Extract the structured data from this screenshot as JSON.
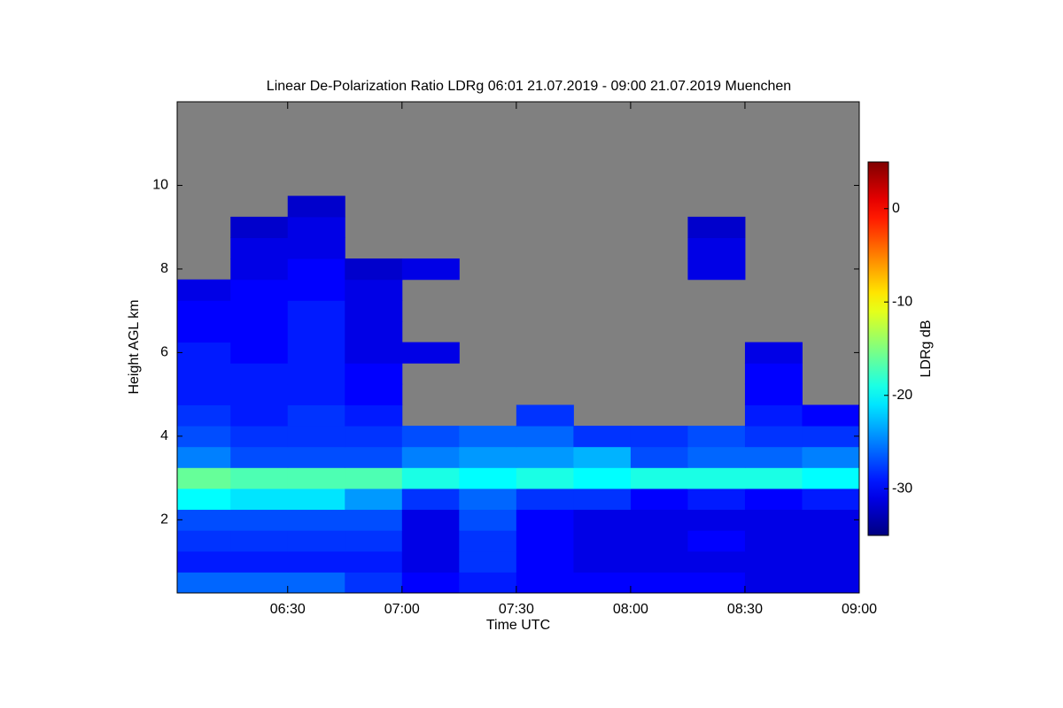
{
  "chart_data": {
    "type": "heatmap",
    "title": "Linear De-Polarization Ratio LDRg   06:01 21.07.2019 - 09:00 21.07.2019 Muenchen",
    "xlabel": "Time UTC",
    "ylabel": "Height AGL km",
    "colorbar_label": "LDRg dB",
    "xlim": [
      361,
      540
    ],
    "xticks": [
      {
        "value": 390,
        "label": "06:30"
      },
      {
        "value": 420,
        "label": "07:00"
      },
      {
        "value": 450,
        "label": "07:30"
      },
      {
        "value": 480,
        "label": "08:00"
      },
      {
        "value": 510,
        "label": "08:30"
      },
      {
        "value": 540,
        "label": "09:00"
      }
    ],
    "ylim": [
      0.25,
      12
    ],
    "yticks": [
      2,
      4,
      6,
      8,
      10
    ],
    "clim": [
      -35,
      5
    ],
    "cticks": [
      0,
      -10,
      -20,
      -30
    ],
    "colormap": "jet",
    "background": "#808080",
    "x_bins": [
      361,
      375,
      390,
      405,
      420,
      435,
      450,
      465,
      480,
      495,
      510,
      525,
      540
    ],
    "y_bins": [
      0.25,
      0.75,
      1.25,
      1.75,
      2.25,
      2.75,
      3.25,
      3.75,
      4.25,
      4.75,
      5.25,
      5.75,
      6.25,
      6.75,
      7.25,
      7.75,
      8.25,
      8.75,
      9.25,
      9.75
    ],
    "z": [
      [
        -26,
        -26,
        -26,
        -28,
        -30,
        -29,
        -30,
        -30,
        -30,
        -30,
        -31,
        -31
      ],
      [
        -29,
        -29,
        -29,
        -29,
        -31,
        -28,
        -30,
        -31,
        -31,
        -31,
        -31,
        -31
      ],
      [
        -28,
        -28,
        -28,
        -28,
        -31,
        -28,
        -30,
        -31,
        -31,
        -30,
        -31,
        -31
      ],
      [
        -27,
        -27,
        -27,
        -27,
        -31,
        -27,
        -30,
        -31,
        -31,
        -31,
        -31,
        -31
      ],
      [
        -20,
        -21,
        -21,
        -24,
        -28,
        -26,
        -28,
        -28,
        -30,
        -29,
        -30,
        -29
      ],
      [
        -16,
        -17,
        -17,
        -17,
        -19,
        -20,
        -19,
        -20,
        -19,
        -19,
        -19,
        -20
      ],
      [
        -25,
        -27,
        -27,
        -27,
        -25,
        -24,
        -24,
        -23,
        -27,
        -26,
        -26,
        -25
      ],
      [
        -27,
        -28,
        -28,
        -28,
        -27,
        -26,
        -26,
        -28,
        -28,
        -27,
        -28,
        -28
      ],
      [
        -28,
        -29,
        -28,
        -29,
        null,
        null,
        -28,
        null,
        null,
        null,
        -29,
        -30
      ],
      [
        -29,
        -29,
        -29,
        -30,
        null,
        null,
        null,
        null,
        null,
        null,
        -30,
        null
      ],
      [
        -29,
        -29,
        -29,
        -30,
        null,
        null,
        null,
        null,
        null,
        null,
        -30,
        null
      ],
      [
        -29,
        -30,
        -29,
        -31,
        -31,
        null,
        null,
        null,
        null,
        null,
        -31,
        null
      ],
      [
        -30,
        -30,
        -29,
        -31,
        null,
        null,
        null,
        null,
        null,
        null,
        null,
        null
      ],
      [
        -30,
        -30,
        -29,
        -31,
        null,
        null,
        null,
        null,
        null,
        null,
        null,
        null
      ],
      [
        -31,
        -30,
        -30,
        -31,
        null,
        null,
        null,
        null,
        null,
        null,
        null,
        null
      ],
      [
        null,
        -31,
        -30,
        -32,
        -31,
        null,
        null,
        null,
        null,
        -31,
        null,
        null
      ],
      [
        null,
        -31,
        -31,
        null,
        null,
        null,
        null,
        null,
        null,
        -31,
        null,
        null
      ],
      [
        null,
        -32,
        -31,
        null,
        null,
        null,
        null,
        null,
        null,
        -32,
        null,
        null
      ],
      [
        null,
        null,
        -32,
        null,
        null,
        null,
        null,
        null,
        null,
        null,
        null,
        null
      ]
    ]
  }
}
